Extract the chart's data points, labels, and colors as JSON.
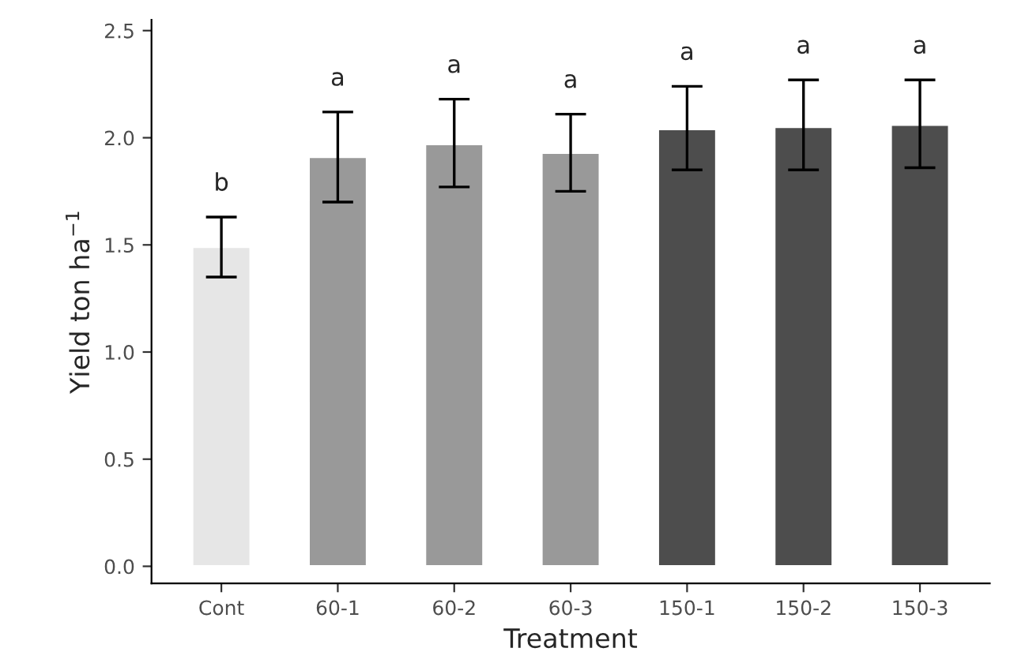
{
  "chart_data": {
    "type": "bar",
    "xlabel": "Treatment",
    "ylabel": "Yield ton ha$^{−1}$",
    "categories": [
      "Cont",
      "60-1",
      "60-2",
      "60-3",
      "150-1",
      "150-2",
      "150-3"
    ],
    "values": [
      1.49,
      1.91,
      1.97,
      1.93,
      2.04,
      2.05,
      2.06
    ],
    "colors": [
      "#e6e6e6",
      "#999999",
      "#999999",
      "#999999",
      "#4d4d4d",
      "#4d4d4d",
      "#4d4d4d"
    ],
    "errors": [
      [
        1.35,
        1.63
      ],
      [
        1.7,
        2.12
      ],
      [
        1.77,
        2.18
      ],
      [
        1.75,
        2.11
      ],
      [
        1.85,
        2.24
      ],
      [
        1.85,
        2.27
      ],
      [
        1.86,
        2.27
      ]
    ],
    "ylim": [
      -0.08,
      2.55
    ],
    "yticks": [
      {
        "value": 0,
        "label": "0.0"
      },
      {
        "value": 0.5,
        "label": "0.5"
      },
      {
        "value": 1,
        "label": "1.0"
      },
      {
        "value": 1.5,
        "label": "1.5"
      },
      {
        "value": 2,
        "label": "2.0"
      },
      {
        "value": 2.5,
        "label": "2.5"
      }
    ],
    "grid": false,
    "annotations": [
      "b",
      "a",
      "a",
      "a",
      "a",
      "a",
      "a"
    ]
  }
}
